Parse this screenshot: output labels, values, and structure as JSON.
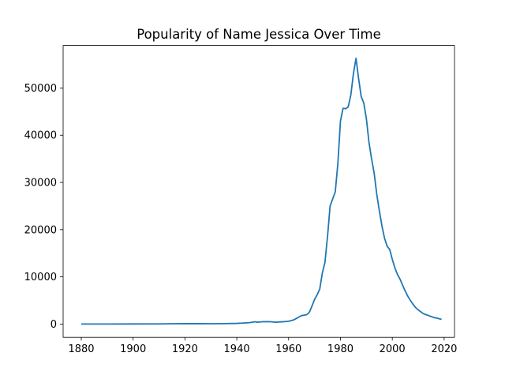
{
  "chart_data": {
    "type": "line",
    "title": "Popularity of Name Jessica Over Time",
    "xlabel": "",
    "ylabel": "",
    "xlim": [
      1873,
      2024
    ],
    "ylim": [
      -2800,
      59000
    ],
    "xticks": [
      1880,
      1900,
      1920,
      1940,
      1960,
      1980,
      2000,
      2020
    ],
    "yticks": [
      0,
      10000,
      20000,
      30000,
      40000,
      50000
    ],
    "grid": false,
    "color": "#1f77b4",
    "series": [
      {
        "x": [
          1880,
          1890,
          1900,
          1910,
          1915,
          1920,
          1930,
          1935,
          1940,
          1942,
          1945,
          1947,
          1948,
          1950,
          1953,
          1955,
          1958,
          1960,
          1962,
          1963,
          1964,
          1965,
          1966,
          1967,
          1968,
          1969,
          1970,
          1971,
          1972,
          1973,
          1974,
          1975,
          1976,
          1977,
          1978,
          1979,
          1980,
          1981,
          1982,
          1983,
          1984,
          1985,
          1986,
          1987,
          1988,
          1989,
          1990,
          1991,
          1992,
          1993,
          1994,
          1995,
          1996,
          1997,
          1998,
          1999,
          2000,
          2001,
          2002,
          2003,
          2004,
          2005,
          2006,
          2007,
          2008,
          2009,
          2010,
          2011,
          2012,
          2013,
          2014,
          2015,
          2016,
          2017,
          2018,
          2019
        ],
        "y": [
          10,
          15,
          20,
          40,
          80,
          90,
          80,
          100,
          150,
          200,
          300,
          500,
          400,
          500,
          500,
          400,
          500,
          600,
          900,
          1200,
          1500,
          1800,
          1900,
          2000,
          2500,
          3800,
          5200,
          6200,
          7400,
          10800,
          13000,
          18500,
          25000,
          26500,
          28000,
          34000,
          43000,
          45700,
          45600,
          46000,
          48500,
          53000,
          56300,
          52000,
          48200,
          46800,
          43500,
          38500,
          35000,
          32000,
          27500,
          24000,
          20800,
          18200,
          16500,
          15800,
          13700,
          11900,
          10500,
          9500,
          8200,
          7000,
          5900,
          5000,
          4200,
          3500,
          3000,
          2600,
          2200,
          2000,
          1800,
          1600,
          1400,
          1300,
          1150,
          1000
        ]
      }
    ]
  }
}
